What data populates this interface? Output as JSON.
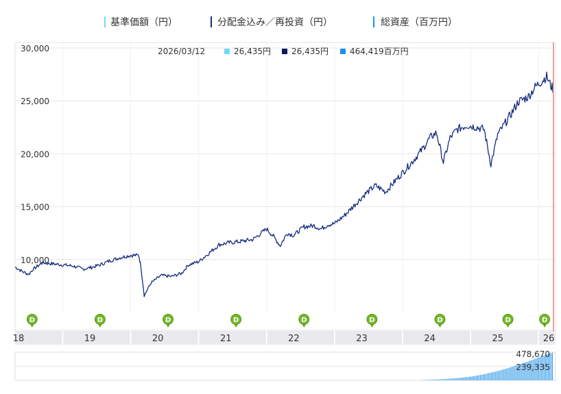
{
  "chart_data": {
    "type": "line",
    "legend": {
      "placement": "top-center",
      "entries": [
        {
          "label": "基準価額（円）",
          "color": "#6fd9f4"
        },
        {
          "label": "分配金込み／再投資（円）",
          "color": "#132a7d"
        },
        {
          "label": "総資産（百万円）",
          "color": "#1e90e6"
        }
      ]
    },
    "tooltip": {
      "date": "2026/03/12",
      "items": [
        {
          "value": "26,435円",
          "color": "#6fd9f4"
        },
        {
          "value": "26,435円",
          "color": "#0b1a5c"
        },
        {
          "value": "464,419百万円",
          "color": "#1e90e6"
        }
      ]
    },
    "y_axis": {
      "range": [
        5000,
        30000
      ],
      "ticks": [
        {
          "v": 10000,
          "label": "10,000"
        },
        {
          "v": 15000,
          "label": "15,000"
        },
        {
          "v": 20000,
          "label": "20,000"
        },
        {
          "v": 25000,
          "label": "25,000"
        },
        {
          "v": 30000,
          "label": "30,000"
        }
      ],
      "grid": true
    },
    "x_axis": {
      "range": [
        2018.3,
        2026.25
      ],
      "ticks": [
        {
          "v": 2018.35,
          "label": "18"
        },
        {
          "v": 2019.4,
          "label": "19"
        },
        {
          "v": 2020.4,
          "label": "20"
        },
        {
          "v": 2021.4,
          "label": "21"
        },
        {
          "v": 2022.4,
          "label": "22"
        },
        {
          "v": 2023.4,
          "label": "23"
        },
        {
          "v": 2024.4,
          "label": "24"
        },
        {
          "v": 2025.4,
          "label": "25"
        },
        {
          "v": 2026.15,
          "label": "26"
        }
      ],
      "year_dividers": [
        2019,
        2020,
        2021,
        2022,
        2023,
        2024,
        2025,
        2026
      ]
    },
    "dividend_marker": {
      "label": "D",
      "x": [
        2018.55,
        2019.55,
        2020.55,
        2021.55,
        2022.55,
        2023.55,
        2024.55,
        2025.55,
        2026.09
      ]
    },
    "series": [
      {
        "name": "分配金込み／再投資（円）",
        "color": "#132a7d",
        "points": [
          [
            2018.3,
            9300
          ],
          [
            2018.4,
            8900
          ],
          [
            2018.5,
            8600
          ],
          [
            2018.55,
            9000
          ],
          [
            2018.7,
            9700
          ],
          [
            2018.85,
            9600
          ],
          [
            2019.0,
            9500
          ],
          [
            2019.15,
            9400
          ],
          [
            2019.3,
            9100
          ],
          [
            2019.45,
            9300
          ],
          [
            2019.55,
            9500
          ],
          [
            2019.7,
            9900
          ],
          [
            2019.85,
            10200
          ],
          [
            2020.0,
            10400
          ],
          [
            2020.12,
            10400
          ],
          [
            2020.15,
            9400
          ],
          [
            2020.2,
            6600
          ],
          [
            2020.3,
            7800
          ],
          [
            2020.45,
            8500
          ],
          [
            2020.6,
            8400
          ],
          [
            2020.75,
            8700
          ],
          [
            2020.85,
            9500
          ],
          [
            2021.0,
            9800
          ],
          [
            2021.15,
            10600
          ],
          [
            2021.3,
            11400
          ],
          [
            2021.45,
            11600
          ],
          [
            2021.6,
            11700
          ],
          [
            2021.8,
            11900
          ],
          [
            2021.9,
            12400
          ],
          [
            2022.0,
            12900
          ],
          [
            2022.1,
            12200
          ],
          [
            2022.2,
            11300
          ],
          [
            2022.3,
            12500
          ],
          [
            2022.4,
            12300
          ],
          [
            2022.55,
            13100
          ],
          [
            2022.7,
            13200
          ],
          [
            2022.8,
            12900
          ],
          [
            2022.9,
            13300
          ],
          [
            2023.0,
            13400
          ],
          [
            2023.15,
            14200
          ],
          [
            2023.3,
            15200
          ],
          [
            2023.45,
            16200
          ],
          [
            2023.6,
            17000
          ],
          [
            2023.75,
            16400
          ],
          [
            2023.9,
            17500
          ],
          [
            2024.0,
            18200
          ],
          [
            2024.15,
            19300
          ],
          [
            2024.3,
            20500
          ],
          [
            2024.4,
            21500
          ],
          [
            2024.5,
            22000
          ],
          [
            2024.6,
            19200
          ],
          [
            2024.7,
            21500
          ],
          [
            2024.8,
            22300
          ],
          [
            2024.95,
            22700
          ],
          [
            2025.1,
            22500
          ],
          [
            2025.2,
            22300
          ],
          [
            2025.3,
            19000
          ],
          [
            2025.4,
            21800
          ],
          [
            2025.5,
            22800
          ],
          [
            2025.6,
            23800
          ],
          [
            2025.7,
            24900
          ],
          [
            2025.85,
            25400
          ],
          [
            2025.95,
            26300
          ],
          [
            2026.05,
            26900
          ],
          [
            2026.12,
            27300
          ],
          [
            2026.18,
            26435
          ],
          [
            2026.22,
            26100
          ]
        ]
      }
    ],
    "assets_panel": {
      "name": "総資産（百万円）",
      "labels": [
        "478,670",
        "239,335"
      ],
      "max": 478670,
      "bars": [
        [
          2024.3,
          5000
        ],
        [
          2024.4,
          9000
        ],
        [
          2024.5,
          14000
        ],
        [
          2024.6,
          20000
        ],
        [
          2024.7,
          28000
        ],
        [
          2024.8,
          38000
        ],
        [
          2024.9,
          50000
        ],
        [
          2025.0,
          64000
        ],
        [
          2025.1,
          82000
        ],
        [
          2025.2,
          105000
        ],
        [
          2025.3,
          132000
        ],
        [
          2025.4,
          160000
        ],
        [
          2025.5,
          192000
        ],
        [
          2025.6,
          228000
        ],
        [
          2025.7,
          266000
        ],
        [
          2025.8,
          305000
        ],
        [
          2025.9,
          345000
        ],
        [
          2026.0,
          392000
        ],
        [
          2026.1,
          438000
        ],
        [
          2026.18,
          464419
        ],
        [
          2026.22,
          478670
        ]
      ]
    }
  }
}
